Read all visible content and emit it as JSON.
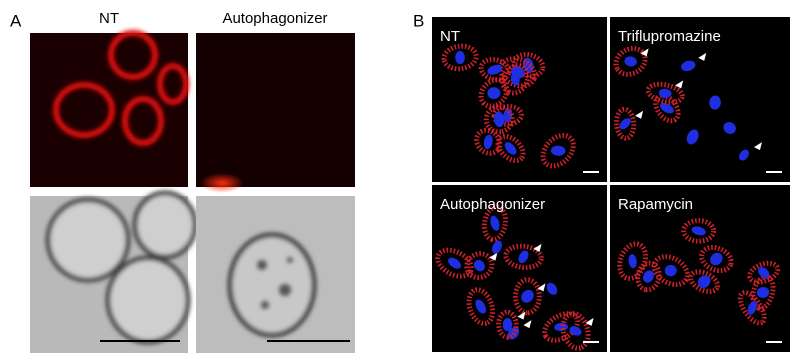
{
  "panel_a": {
    "label": "A",
    "columns": [
      "NT",
      "Autophagonizer"
    ]
  },
  "panel_b": {
    "label": "B",
    "images": [
      "NT",
      "Triflupromazine",
      "Autophagonizer",
      "Rapamycin"
    ]
  }
}
